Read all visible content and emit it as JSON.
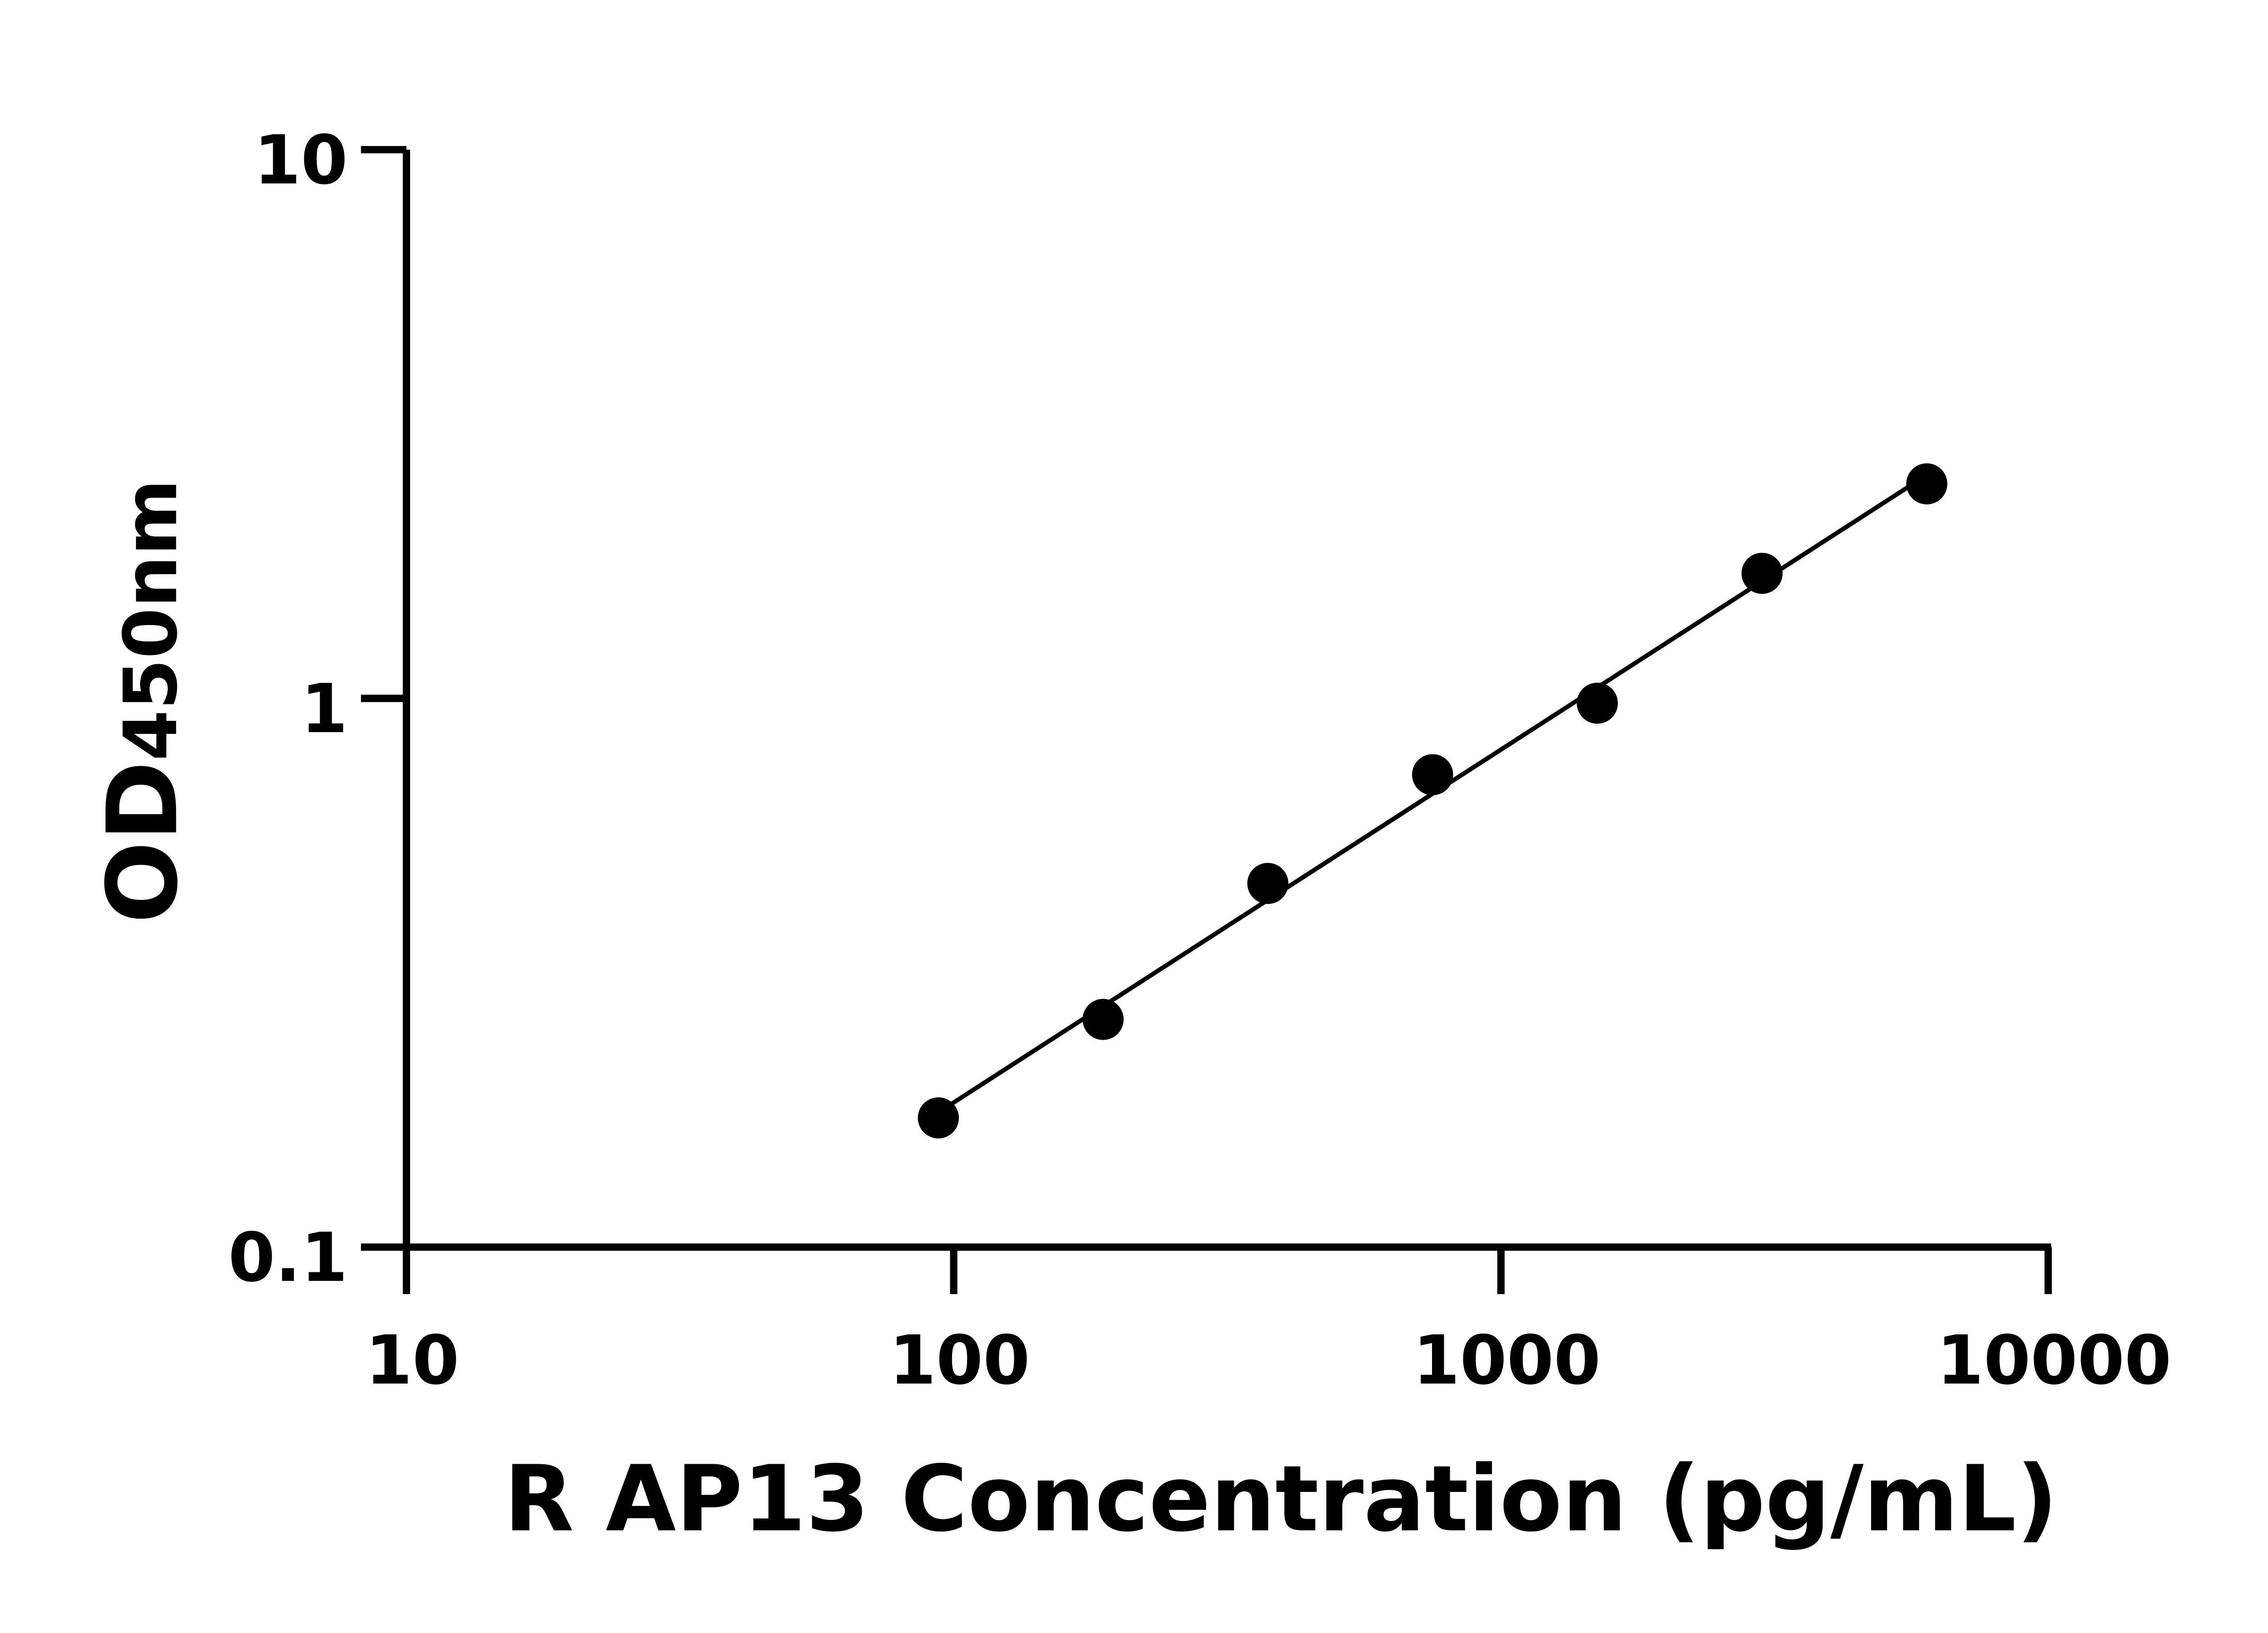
{
  "chart_data": {
    "type": "scatter",
    "title": "",
    "xlabel": "R AP13 Concentration (pg/mL)",
    "ylabel": {
      "main": "OD",
      "sub": "450nm"
    },
    "x_scale": "log",
    "y_scale": "log",
    "xlim": [
      10,
      10000
    ],
    "ylim": [
      0.1,
      10
    ],
    "x_ticks": [
      "10",
      "100",
      "1000",
      "10000"
    ],
    "y_ticks": [
      "0.1",
      "1",
      "10"
    ],
    "grid": false,
    "fit_line": true,
    "colors": {
      "points": "#000000",
      "line": "#000000"
    },
    "x": [
      93.75,
      187.5,
      375,
      750,
      1500,
      3000,
      6000
    ],
    "y": [
      0.172,
      0.26,
      0.46,
      0.726,
      0.98,
      1.69,
      2.46
    ]
  }
}
